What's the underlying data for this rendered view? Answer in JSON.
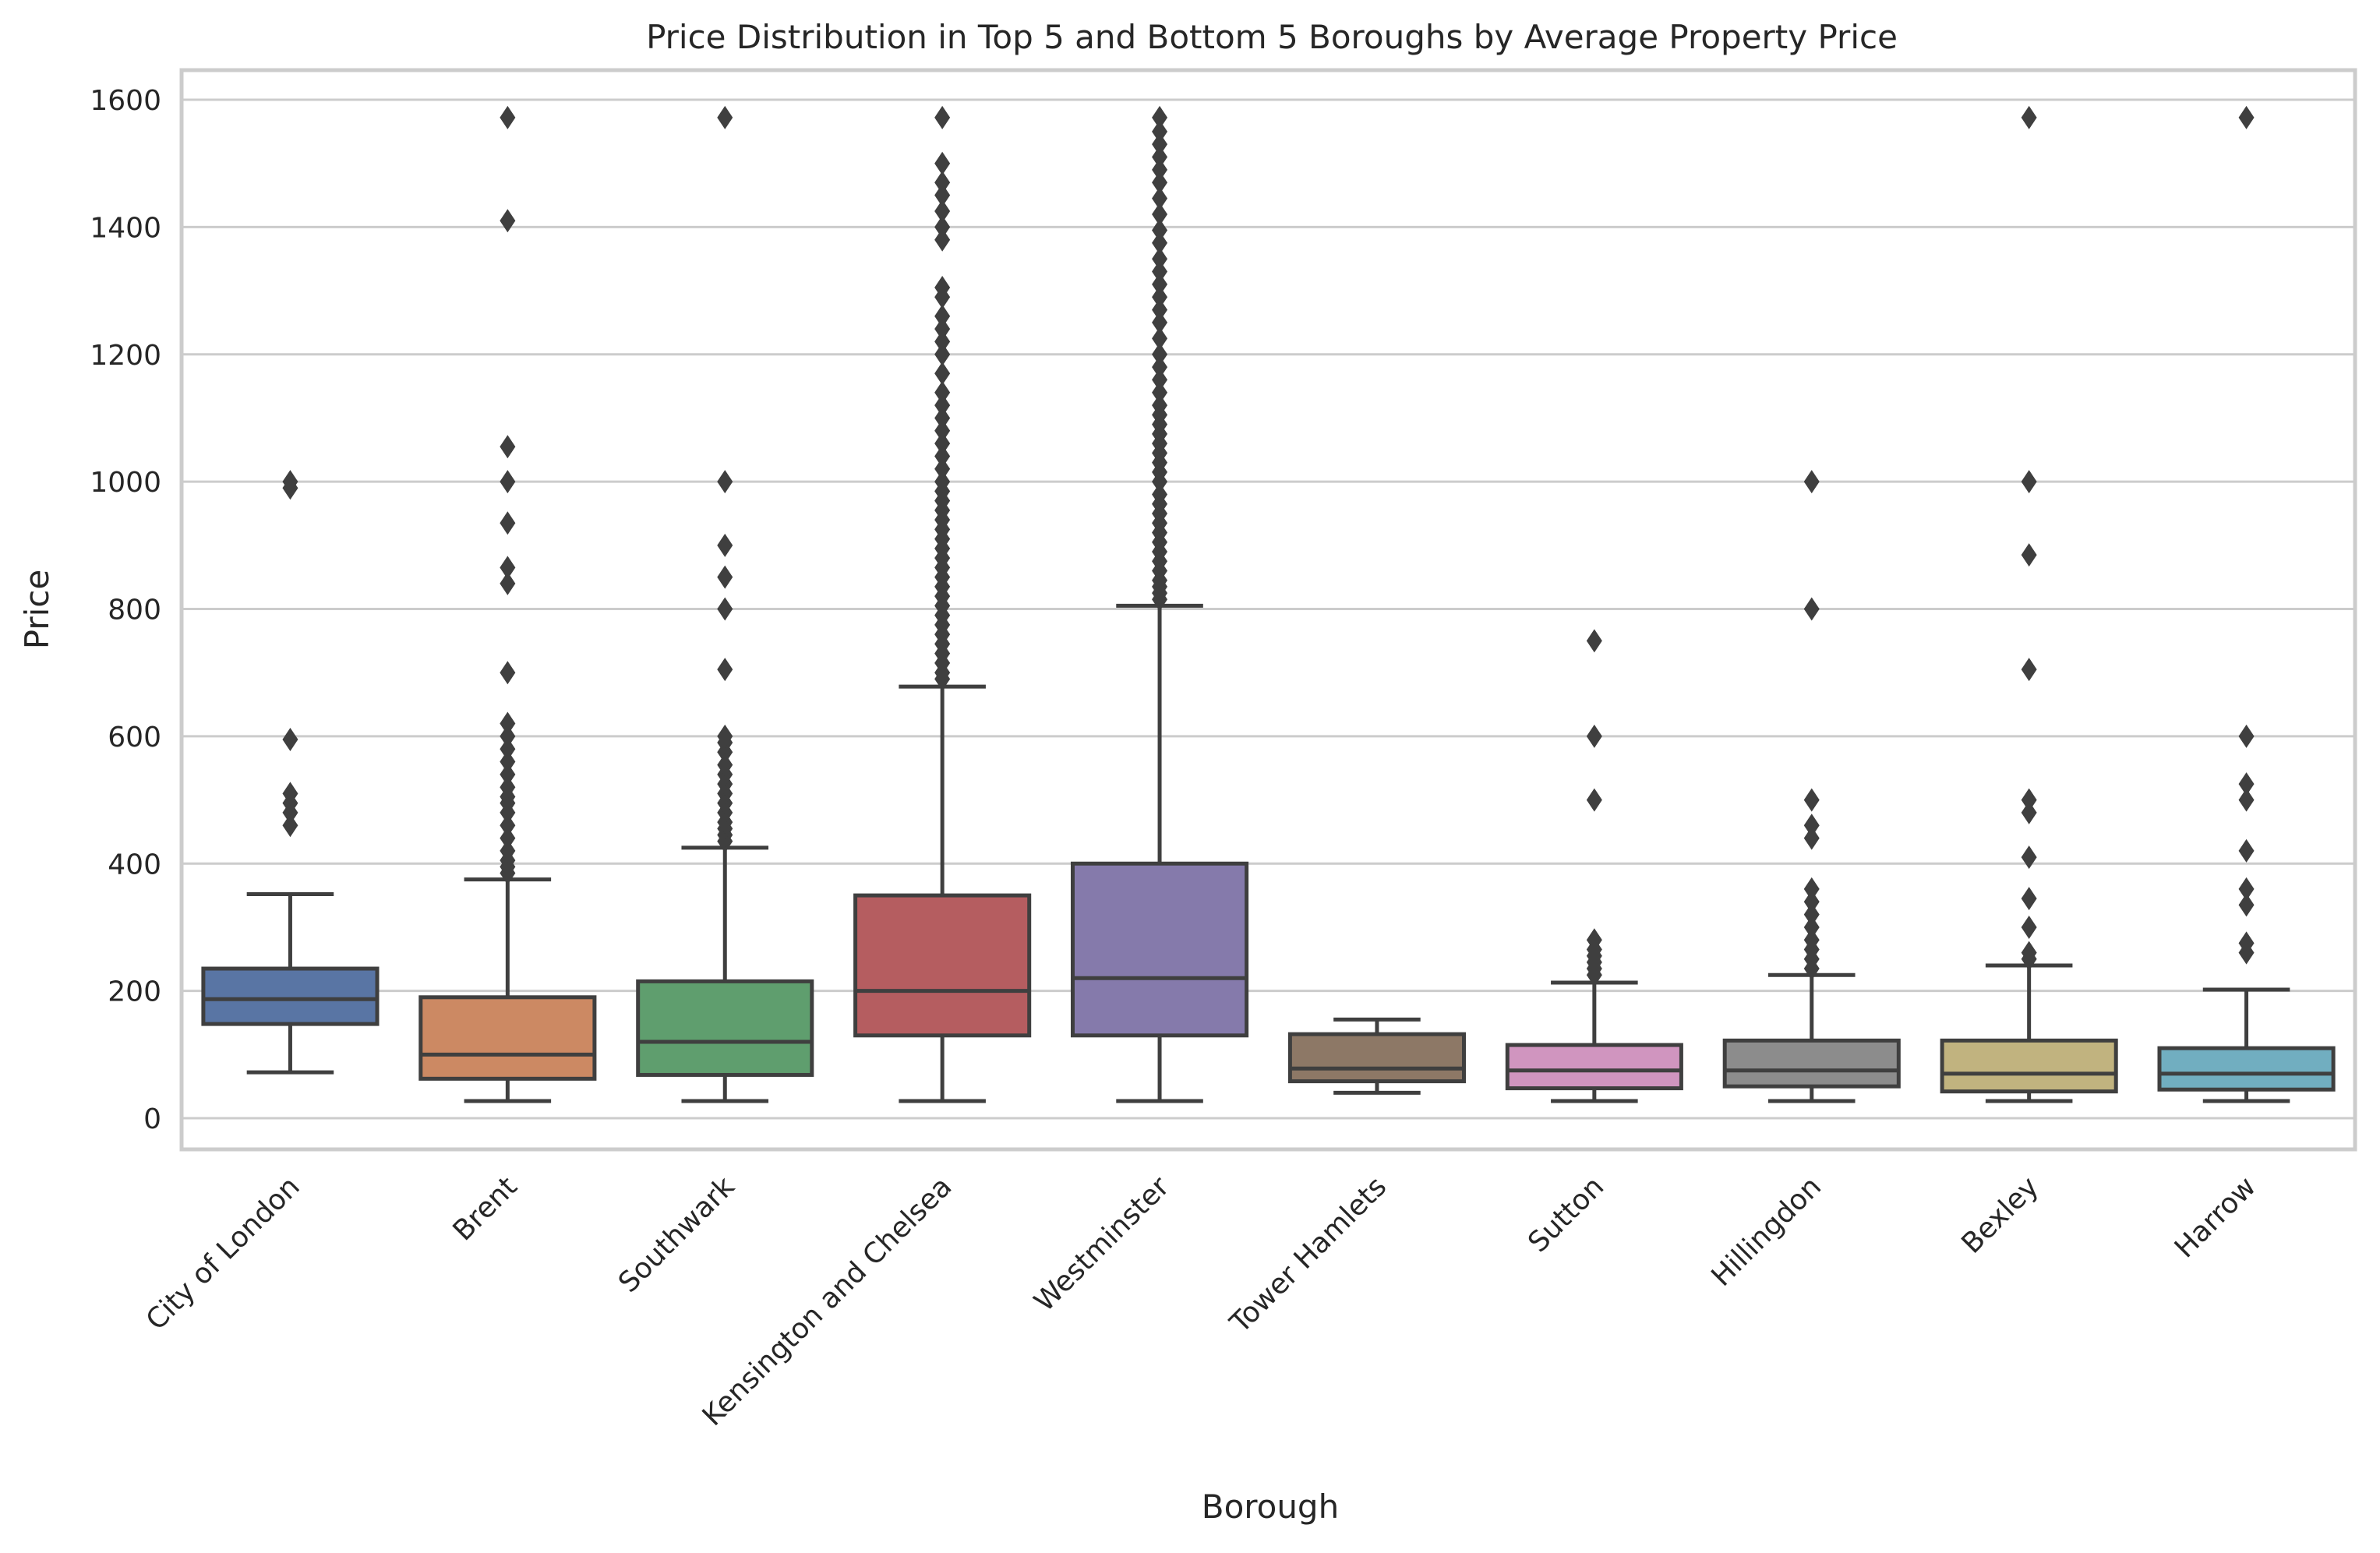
{
  "chart_data": {
    "type": "box",
    "title": "Price Distribution in Top 5 and Bottom 5 Boroughs by Average Property Price",
    "xlabel": "Borough",
    "ylabel": "Price",
    "ylim": [
      -50,
      1650
    ],
    "yticks": [
      0,
      200,
      400,
      600,
      800,
      1000,
      1200,
      1400,
      1600
    ],
    "grid": "horizontal",
    "categories": [
      "City of London",
      "Brent",
      "Southwark",
      "Kensington and Chelsea",
      "Westminster",
      "Tower Hamlets",
      "Sutton",
      "Hillingdon",
      "Bexley",
      "Harrow"
    ],
    "boxes": [
      {
        "category": "City of London",
        "color": "#5975a4",
        "whislo": 72,
        "q1": 148,
        "median": 187,
        "q3": 235,
        "whishi": 352,
        "fliers": [
          460,
          480,
          495,
          510,
          595,
          990,
          1000
        ]
      },
      {
        "category": "Brent",
        "color": "#cc8963",
        "whislo": 27,
        "q1": 62,
        "median": 100,
        "q3": 190,
        "whishi": 375,
        "fliers": [
          385,
          395,
          405,
          420,
          440,
          460,
          480,
          495,
          505,
          520,
          540,
          560,
          580,
          600,
          620,
          700,
          840,
          865,
          935,
          1000,
          1055,
          1410,
          1572
        ]
      },
      {
        "category": "Southwark",
        "color": "#5f9e6e",
        "whislo": 27,
        "q1": 68,
        "median": 120,
        "q3": 215,
        "whishi": 425,
        "fliers": [
          435,
          445,
          455,
          465,
          480,
          495,
          510,
          525,
          540,
          555,
          575,
          590,
          600,
          705,
          800,
          850,
          900,
          1000,
          1572
        ]
      },
      {
        "category": "Kensington and Chelsea",
        "color": "#b55d60",
        "whislo": 27,
        "q1": 130,
        "median": 200,
        "q3": 350,
        "whishi": 678,
        "fliers": [
          690,
          700,
          715,
          730,
          745,
          760,
          775,
          790,
          805,
          820,
          835,
          850,
          865,
          880,
          895,
          910,
          925,
          940,
          955,
          970,
          985,
          1000,
          1020,
          1040,
          1060,
          1080,
          1100,
          1120,
          1140,
          1170,
          1200,
          1220,
          1240,
          1260,
          1290,
          1305,
          1380,
          1400,
          1425,
          1450,
          1470,
          1500,
          1572
        ]
      },
      {
        "category": "Westminster",
        "color": "#857aab",
        "whislo": 27,
        "q1": 130,
        "median": 220,
        "q3": 400,
        "whishi": 805,
        "fliers": [
          815,
          825,
          835,
          845,
          860,
          875,
          890,
          905,
          920,
          935,
          950,
          965,
          980,
          1000,
          1015,
          1030,
          1045,
          1060,
          1075,
          1090,
          1105,
          1120,
          1140,
          1160,
          1180,
          1200,
          1225,
          1250,
          1270,
          1290,
          1310,
          1330,
          1350,
          1375,
          1395,
          1420,
          1445,
          1470,
          1490,
          1510,
          1530,
          1550,
          1572
        ]
      },
      {
        "category": "Tower Hamlets",
        "color": "#8d7866",
        "whislo": 40,
        "q1": 58,
        "median": 78,
        "q3": 132,
        "whishi": 155,
        "fliers": []
      },
      {
        "category": "Sutton",
        "color": "#d095bf",
        "whislo": 27,
        "q1": 47,
        "median": 75,
        "q3": 115,
        "whishi": 213,
        "fliers": [
          225,
          235,
          245,
          255,
          265,
          280,
          500,
          600,
          750
        ]
      },
      {
        "category": "Hillingdon",
        "color": "#8c8c8c",
        "whislo": 27,
        "q1": 50,
        "median": 75,
        "q3": 122,
        "whishi": 225,
        "fliers": [
          235,
          250,
          265,
          280,
          300,
          320,
          340,
          360,
          440,
          460,
          500,
          800,
          1000
        ]
      },
      {
        "category": "Bexley",
        "color": "#c1b37f",
        "whislo": 27,
        "q1": 42,
        "median": 70,
        "q3": 122,
        "whishi": 240,
        "fliers": [
          250,
          260,
          300,
          345,
          410,
          480,
          500,
          705,
          885,
          1000,
          1572
        ]
      },
      {
        "category": "Harrow",
        "color": "#71aec0",
        "whislo": 27,
        "q1": 45,
        "median": 70,
        "q3": 110,
        "whishi": 202,
        "fliers": [
          260,
          275,
          335,
          360,
          420,
          500,
          525,
          600,
          1572
        ]
      }
    ]
  }
}
